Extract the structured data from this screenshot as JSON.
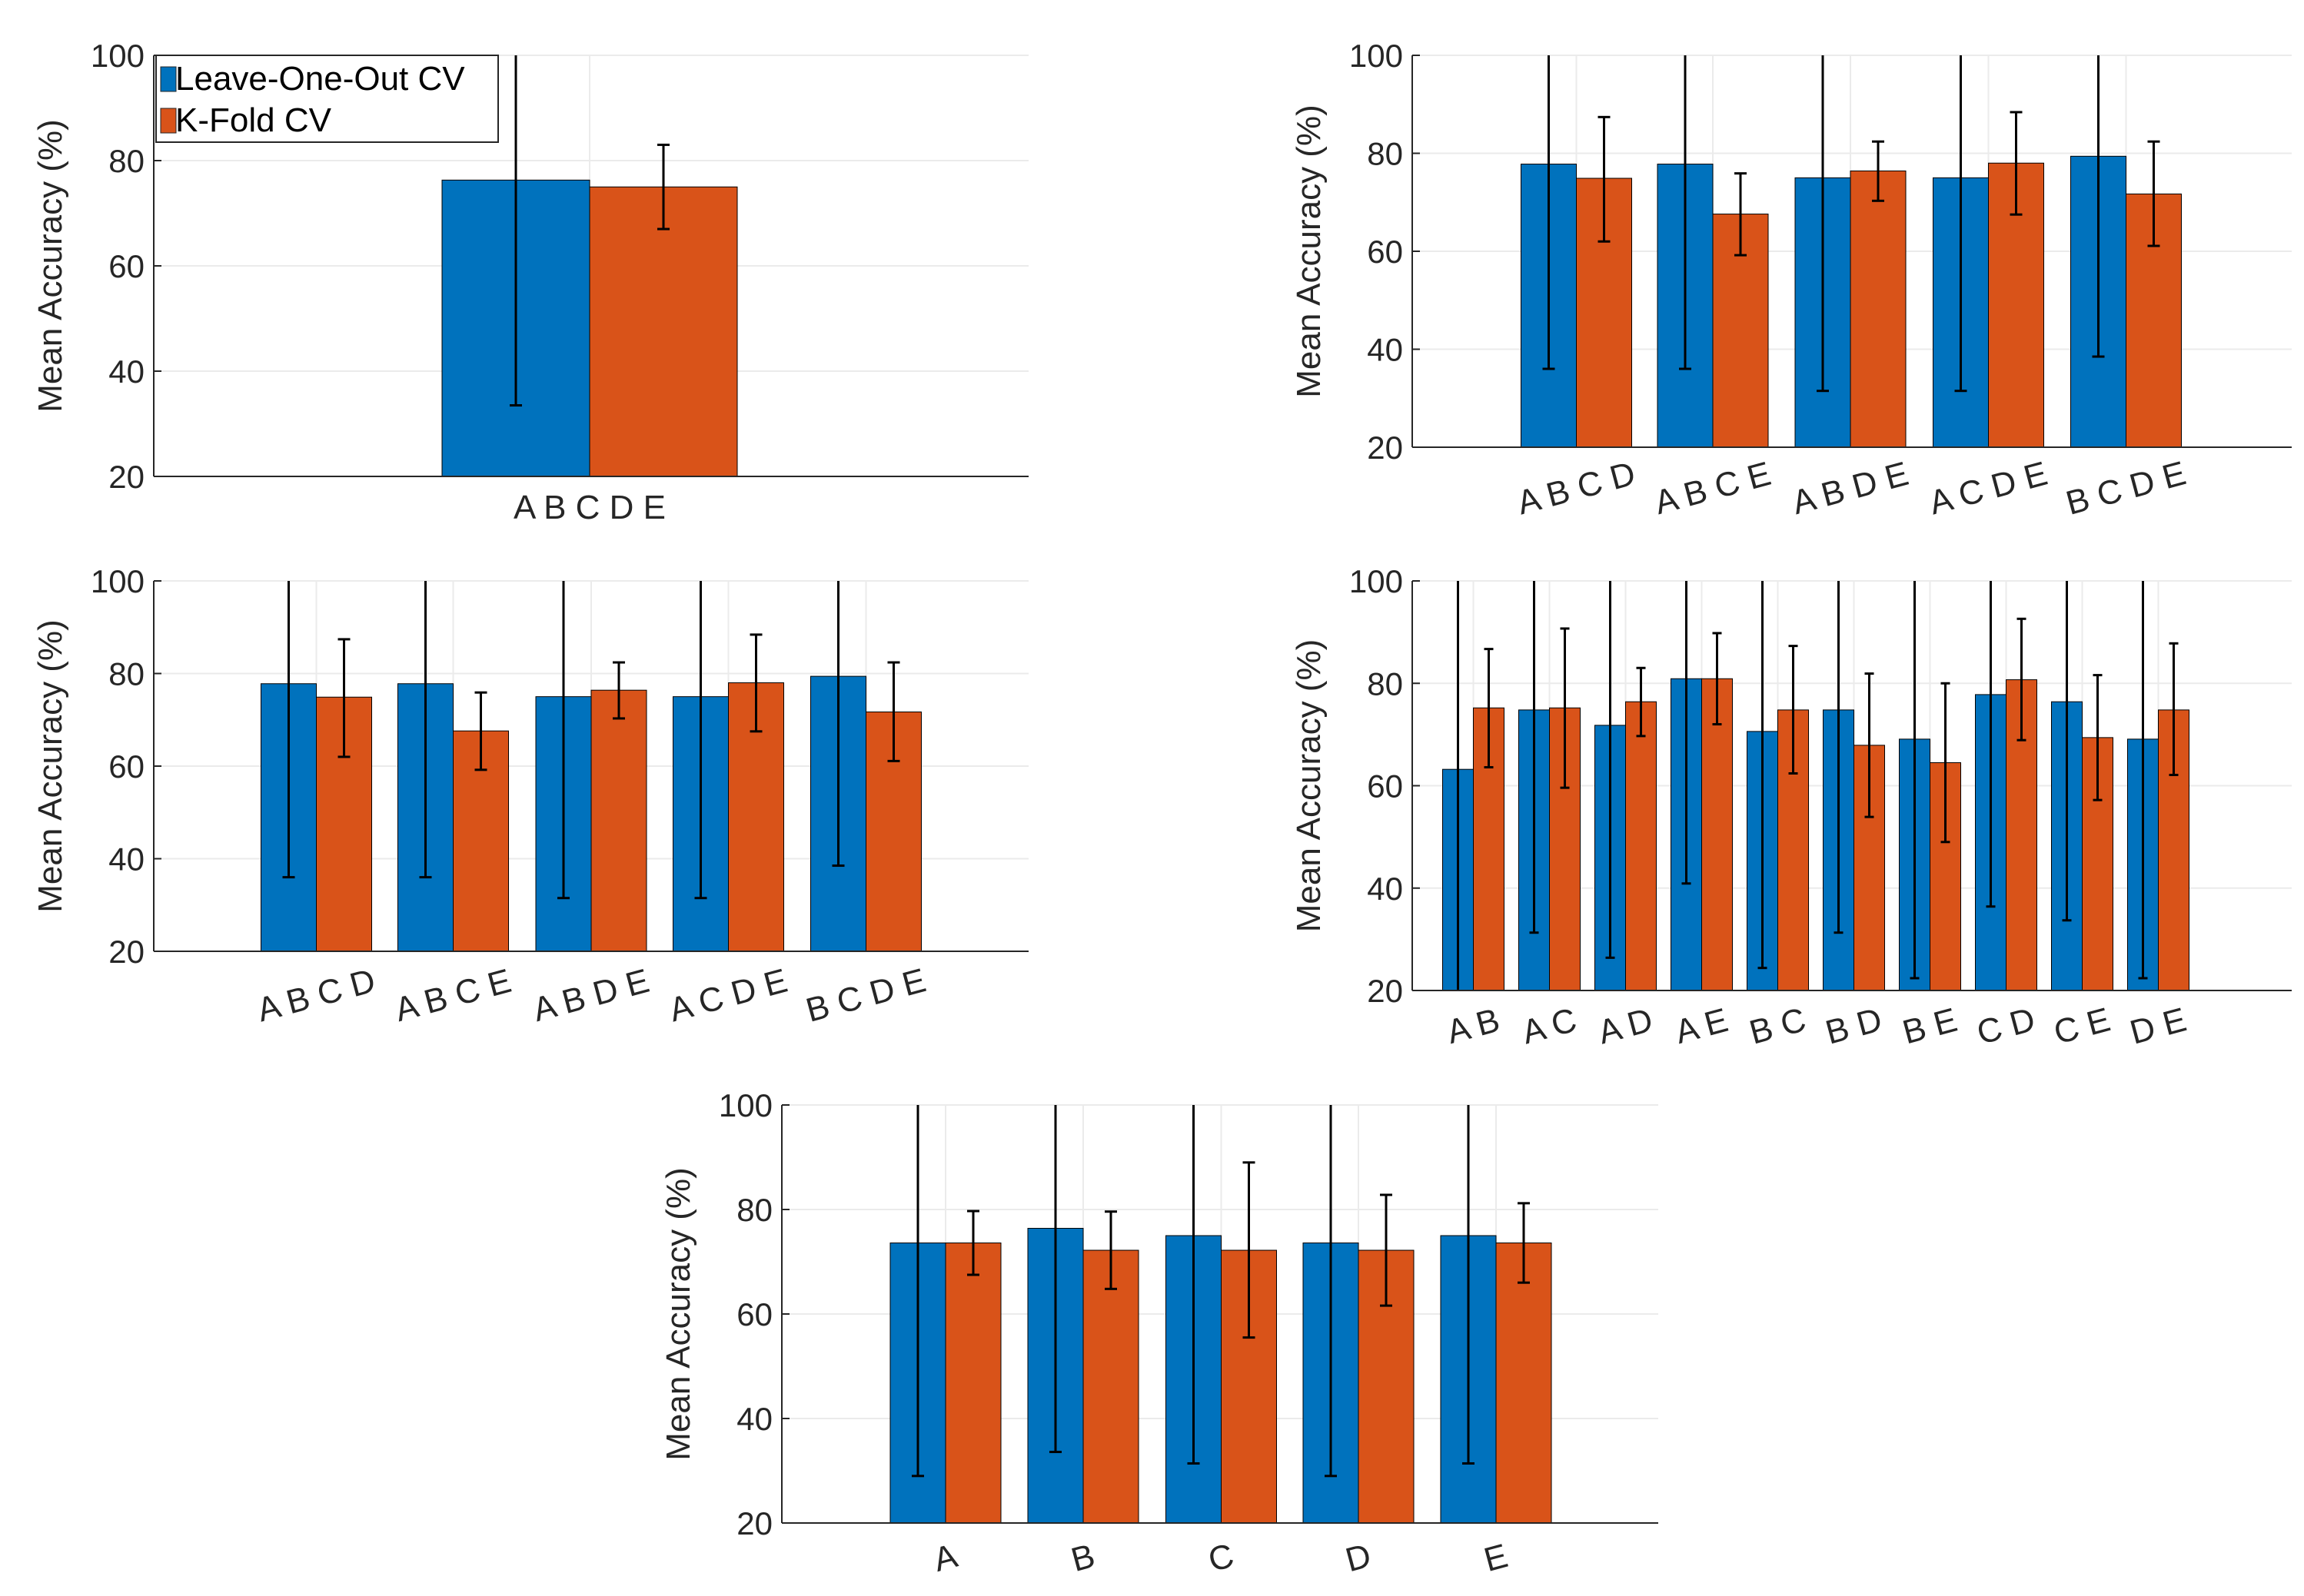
{
  "colors": {
    "loo": "#0072BD",
    "kfold": "#D95319",
    "axis": "#262626",
    "grid": "#EBEBEB",
    "err": "#000000"
  },
  "legend": {
    "items": [
      "Leave-One-Out CV",
      "K-Fold CV"
    ]
  },
  "chart_data": [
    {
      "type": "bar",
      "title": "",
      "xlabel": "",
      "ylabel": "Mean Accuracy (%)",
      "ylim": [
        20,
        100
      ],
      "yticks": [
        "20",
        "40",
        "60",
        "80",
        "100"
      ],
      "categories": [
        "A B C D E"
      ],
      "label_rotation": 0,
      "legend": "top-left",
      "series": [
        {
          "name": "Leave-One-Out CV",
          "values": [
            76.3
          ],
          "err_low": [
            33.5
          ],
          "err_high": [
            100
          ]
        },
        {
          "name": "K-Fold CV",
          "values": [
            75.0
          ],
          "err_low": [
            67.0
          ],
          "err_high": [
            83.0
          ]
        }
      ]
    },
    {
      "type": "bar",
      "title": "",
      "xlabel": "",
      "ylabel": "Mean Accuracy (%)",
      "ylim": [
        20,
        100
      ],
      "yticks": [
        "20",
        "40",
        "60",
        "80",
        "100"
      ],
      "categories": [
        "A B C D",
        "A B C E",
        "A B D E",
        "A C D E",
        "B C D E"
      ],
      "label_rotation": -15,
      "series": [
        {
          "name": "Leave-One-Out CV",
          "values": [
            77.8,
            77.8,
            75.0,
            75.0,
            79.4
          ],
          "err_low": [
            36.0,
            36.0,
            31.5,
            31.5,
            38.5
          ],
          "err_high": [
            100,
            100,
            100,
            100,
            100
          ]
        },
        {
          "name": "K-Fold CV",
          "values": [
            74.9,
            67.6,
            76.4,
            78.0,
            71.7
          ],
          "err_low": [
            62.0,
            59.2,
            70.3,
            67.5,
            61.1
          ],
          "err_high": [
            87.4,
            75.9,
            82.4,
            88.4,
            82.4
          ]
        }
      ]
    },
    {
      "type": "bar",
      "title": "",
      "xlabel": "",
      "ylabel": "Mean Accuracy (%)",
      "ylim": [
        20,
        100
      ],
      "yticks": [
        "20",
        "40",
        "60",
        "80",
        "100"
      ],
      "categories": [
        "A B C D",
        "A B C E",
        "A B D E",
        "A C D E",
        "B C D E"
      ],
      "label_rotation": -15,
      "series": [
        {
          "name": "Leave-One-Out CV",
          "values": [
            77.8,
            77.8,
            75.0,
            75.0,
            79.4
          ],
          "err_low": [
            36.0,
            36.0,
            31.5,
            31.5,
            38.5
          ],
          "err_high": [
            100,
            100,
            100,
            100,
            100
          ]
        },
        {
          "name": "K-Fold CV",
          "values": [
            74.9,
            67.6,
            76.4,
            78.0,
            71.7
          ],
          "err_low": [
            62.0,
            59.2,
            70.3,
            67.5,
            61.1
          ],
          "err_high": [
            87.4,
            75.9,
            82.4,
            88.4,
            82.4
          ]
        }
      ]
    },
    {
      "type": "bar",
      "title": "",
      "xlabel": "",
      "ylabel": "Mean Accuracy (%)",
      "ylim": [
        20,
        100
      ],
      "yticks": [
        "20",
        "40",
        "60",
        "80",
        "100"
      ],
      "categories": [
        "A B",
        "A C",
        "A D",
        "A E",
        "B C",
        "B D",
        "B E",
        "C D",
        "C E",
        "D E"
      ],
      "label_rotation": -15,
      "series": [
        {
          "name": "Leave-One-Out CV",
          "values": [
            63.2,
            74.8,
            71.8,
            80.9,
            70.6,
            74.8,
            69.1,
            77.8,
            76.4,
            69.1
          ],
          "err_low": [
            20.0,
            31.3,
            26.4,
            40.9,
            24.4,
            31.3,
            22.4,
            36.4,
            33.7,
            22.4
          ],
          "err_high": [
            100,
            100,
            100,
            100,
            100,
            100,
            100,
            100,
            100,
            100
          ]
        },
        {
          "name": "K-Fold CV",
          "values": [
            75.2,
            75.2,
            76.4,
            80.9,
            74.8,
            67.9,
            64.5,
            80.7,
            69.4,
            74.8
          ],
          "err_low": [
            63.6,
            59.6,
            69.7,
            72.0,
            62.4,
            53.9,
            49.0,
            68.9,
            57.2,
            62.1
          ],
          "err_high": [
            86.7,
            90.7,
            83.0,
            89.8,
            87.3,
            81.9,
            80.0,
            92.6,
            81.6,
            87.8
          ]
        }
      ]
    },
    {
      "type": "bar",
      "title": "",
      "xlabel": "",
      "ylabel": "Mean Accuracy (%)",
      "ylim": [
        20,
        100
      ],
      "yticks": [
        "20",
        "40",
        "60",
        "80",
        "100"
      ],
      "categories": [
        "A",
        "B",
        "C",
        "D",
        "E"
      ],
      "label_rotation": -15,
      "series": [
        {
          "name": "Leave-One-Out CV",
          "values": [
            73.6,
            76.4,
            75.0,
            73.6,
            75.0
          ],
          "err_low": [
            29.0,
            33.6,
            31.4,
            29.0,
            31.4
          ],
          "err_high": [
            100,
            100,
            100,
            100,
            100
          ]
        },
        {
          "name": "K-Fold CV",
          "values": [
            73.6,
            72.2,
            72.2,
            72.2,
            73.6
          ],
          "err_low": [
            67.5,
            64.8,
            55.5,
            61.6,
            66.0
          ],
          "err_high": [
            79.7,
            79.6,
            89.0,
            82.8,
            81.2
          ]
        }
      ]
    }
  ]
}
